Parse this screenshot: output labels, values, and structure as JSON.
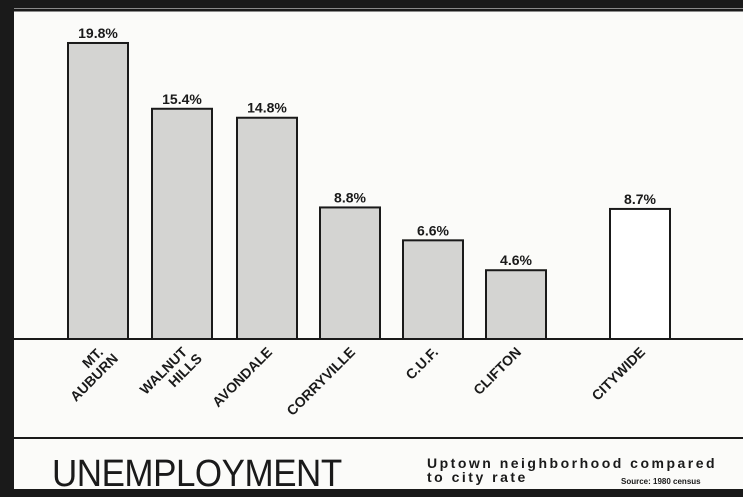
{
  "chart_data": {
    "type": "bar",
    "categories": [
      [
        "MT.",
        "AUBURN"
      ],
      [
        "WALNUT",
        "HILLS"
      ],
      [
        "AVONDALE"
      ],
      [
        "CORRYVILLE"
      ],
      [
        "C.U.F."
      ],
      [
        "CLIFTON"
      ],
      [
        "CITYWIDE"
      ]
    ],
    "values": [
      19.8,
      15.4,
      14.8,
      8.8,
      6.6,
      4.6,
      8.7
    ],
    "value_labels": [
      "19.8%",
      "15.4%",
      "14.8%",
      "8.8%",
      "6.6%",
      "4.6%",
      "8.7%"
    ],
    "highlight": [
      true,
      true,
      true,
      true,
      true,
      true,
      false
    ],
    "ylim": [
      0,
      20
    ],
    "title": "UNEMPLOYMENT",
    "subtitle_lines": [
      "Uptown neighborhood compared",
      "to city rate"
    ],
    "source": "Source: 1980 census",
    "grid": false,
    "legend": "none",
    "colors": {
      "background": "#1a1a1a",
      "panel": "#fbfbf9",
      "bar_fill": "#d4d4d2",
      "bar_fill_citywide": "#ffffff",
      "ink": "#1a1a1a"
    }
  }
}
